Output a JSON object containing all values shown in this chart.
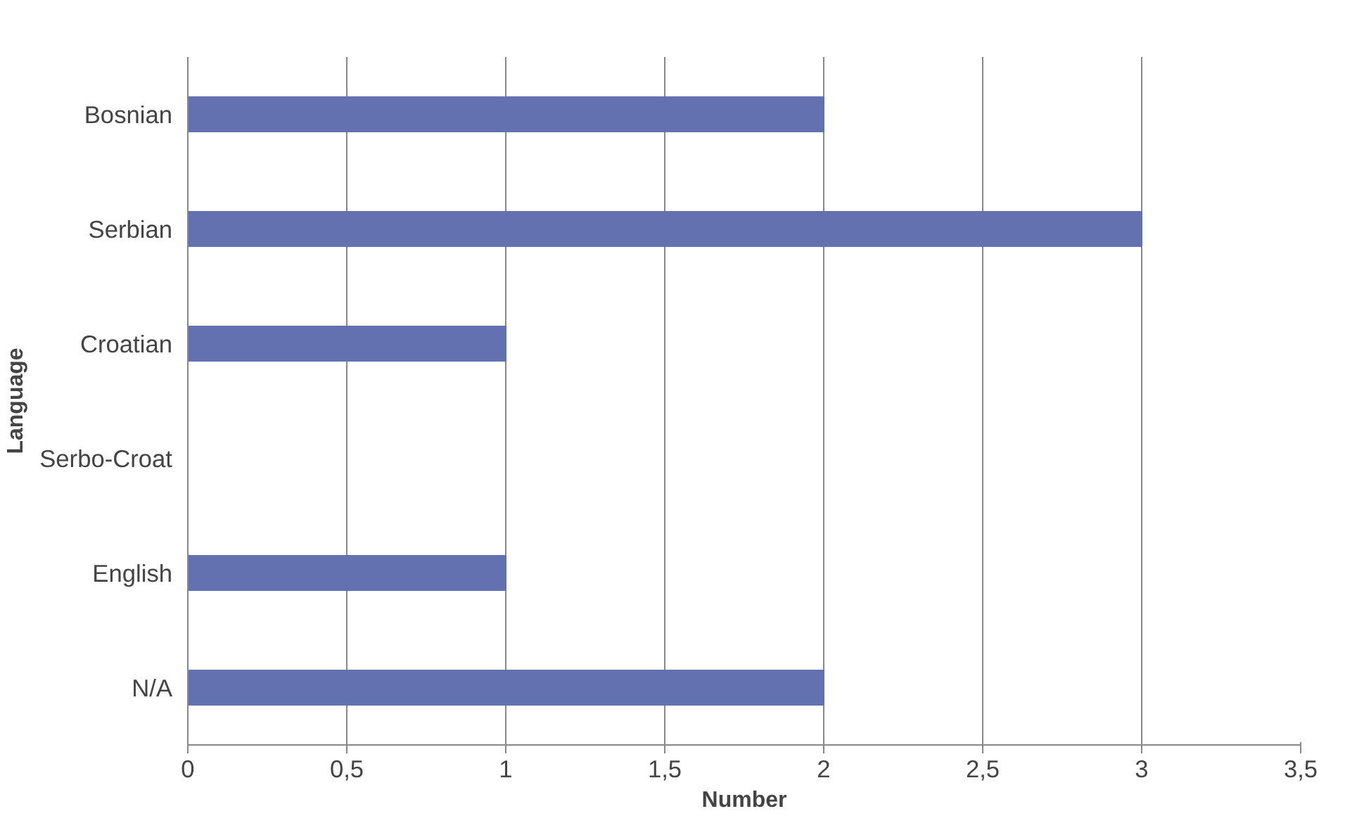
{
  "chart_data": {
    "type": "bar",
    "orientation": "horizontal",
    "xlabel": "Number",
    "ylabel": "Language",
    "categories": [
      "Bosnian",
      "Serbian",
      "Croatian",
      "Serbo-Croat",
      "English",
      "N/A"
    ],
    "values": [
      2,
      3,
      1,
      0,
      1,
      2
    ],
    "color": "#6371b0",
    "xlim": [
      0,
      3.5
    ],
    "xticks": [
      0,
      {
        "value": 0.5,
        "label": "0,5"
      },
      1,
      {
        "value": 1.5,
        "label": "1,5"
      },
      2,
      {
        "value": 2.5,
        "label": "2,5"
      },
      3,
      {
        "value": 3.5,
        "label": "3,5"
      }
    ],
    "grid": "x"
  }
}
